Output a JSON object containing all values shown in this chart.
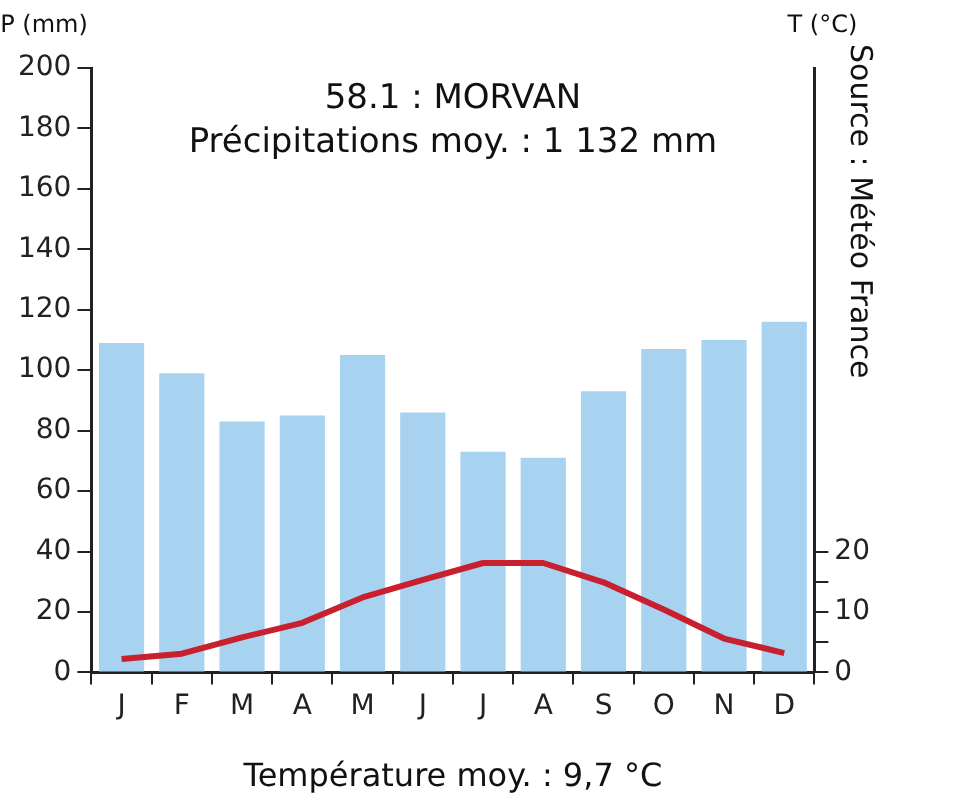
{
  "chart_data": {
    "type": "bar",
    "title": "58.1 : MORVAN",
    "subtitle": "Précipitations moy. : 1 132 mm",
    "ylabel": "P (mm)",
    "y2label": "T (°C)",
    "annotations": [
      "Source : Météo France",
      "Température moy. : 9,7 °C"
    ],
    "categories": [
      "J",
      "F",
      "M",
      "A",
      "M",
      "J",
      "J",
      "A",
      "S",
      "O",
      "N",
      "D"
    ],
    "series": [
      {
        "color": "#a8d3f0",
        "values": [
          109,
          99,
          83,
          85,
          105,
          86,
          73,
          71,
          93,
          107,
          110,
          116
        ]
      },
      {
        "type": "line",
        "axis": "y2",
        "color": "#c8202e",
        "values": [
          2.2,
          3.1,
          5.8,
          8.2,
          12.4,
          15.3,
          18.1,
          18.1,
          14.9,
          10.4,
          5.6,
          3.2
        ]
      }
    ],
    "ylim": [
      0,
      200
    ],
    "yticks": [
      0,
      20,
      40,
      60,
      80,
      100,
      120,
      140,
      160,
      180,
      200
    ],
    "y2lim": [
      0,
      100
    ],
    "y2ticks": [
      0,
      {
        "value": 5,
        "label": null
      },
      10,
      {
        "value": 15,
        "label": null
      },
      20
    ],
    "grid": false,
    "legend": false,
    "marker": "none",
    "line_style": "solid"
  }
}
